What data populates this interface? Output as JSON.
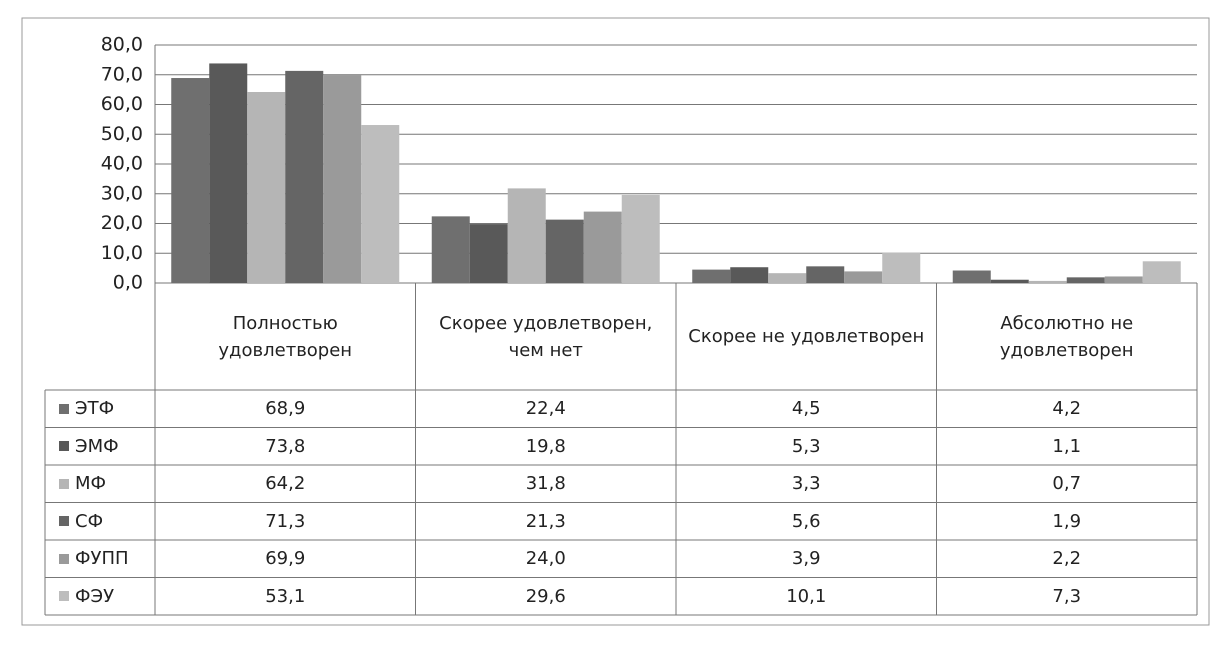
{
  "chart_data": {
    "type": "bar",
    "categories": [
      "Полностью удовлетворен",
      "Скорее удовлетворен, чем нет",
      "Скорее не удовлетворен",
      "Абсолютно не удовлетворен"
    ],
    "series": [
      {
        "name": "ЭТФ",
        "color": "#6f6f6f",
        "values": [
          68.9,
          22.4,
          4.5,
          4.2
        ],
        "value_labels": [
          "68,9",
          "22,4",
          "4,5",
          "4,2"
        ]
      },
      {
        "name": "ЭМФ",
        "color": "#595959",
        "values": [
          73.8,
          19.8,
          5.3,
          1.1
        ],
        "value_labels": [
          "73,8",
          "19,8",
          "5,3",
          "1,1"
        ]
      },
      {
        "name": "МФ",
        "color": "#b5b5b5",
        "values": [
          64.2,
          31.8,
          3.3,
          0.7
        ],
        "value_labels": [
          "64,2",
          "31,8",
          "3,3",
          "0,7"
        ]
      },
      {
        "name": "СФ",
        "color": "#656565",
        "values": [
          71.3,
          21.3,
          5.6,
          1.9
        ],
        "value_labels": [
          "71,3",
          "21,3",
          "5,6",
          "1,9"
        ]
      },
      {
        "name": "ФУПП",
        "color": "#9a9a9a",
        "values": [
          69.9,
          24.0,
          3.9,
          2.2
        ],
        "value_labels": [
          "69,9",
          "24,0",
          "3,9",
          "2,2"
        ]
      },
      {
        "name": "ФЭУ",
        "color": "#bdbdbd",
        "values": [
          53.1,
          29.6,
          10.1,
          7.3
        ],
        "value_labels": [
          "53,1",
          "29,6",
          "10,1",
          "7,3"
        ]
      }
    ],
    "ylim": [
      0,
      80
    ],
    "yticks": [
      {
        "value": 0,
        "label": "0,0"
      },
      {
        "value": 10,
        "label": "10,0"
      },
      {
        "value": 20,
        "label": "20,0"
      },
      {
        "value": 30,
        "label": "30,0"
      },
      {
        "value": 40,
        "label": "40,0"
      },
      {
        "value": 50,
        "label": "50,0"
      },
      {
        "value": 60,
        "label": "60,0"
      },
      {
        "value": 70,
        "label": "70,0"
      },
      {
        "value": 80,
        "label": "80,0"
      }
    ],
    "grid": true
  }
}
